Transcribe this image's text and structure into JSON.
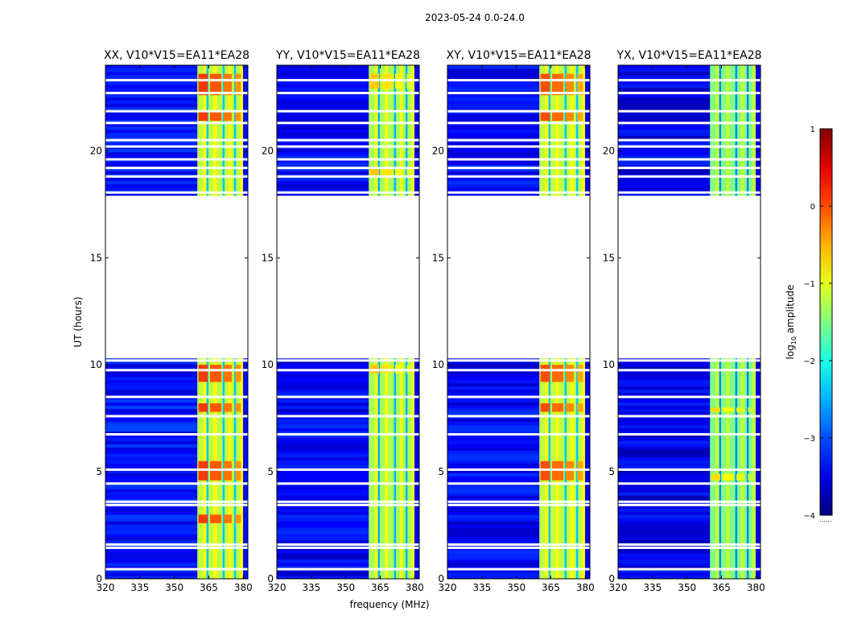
{
  "figure_title": "2023-05-24 0.0-24.0",
  "colorbar": {
    "label_prefix": "log",
    "label_sub": "10",
    "label_suffix": " amplitude",
    "ticks": [
      "1",
      "0",
      "−1",
      "−2",
      "−3",
      "−4"
    ],
    "tick_values": [
      1,
      0,
      -1,
      -2,
      -3,
      -4
    ],
    "range": [
      -4,
      1
    ],
    "colormap": "jet",
    "footnote": "......"
  },
  "chart_data": [
    {
      "type": "heatmap",
      "title": "XX, V10*V15=EA11*EA28",
      "xlabel": "",
      "ylabel": "UT (hours)",
      "xlim": [
        320,
        382
      ],
      "ylim": [
        0,
        24
      ],
      "xticks": [
        320,
        335,
        350,
        365,
        380
      ],
      "yticks": [
        0,
        5,
        10,
        15,
        20
      ],
      "xtick_labels": [
        "320",
        "335",
        "350",
        "365",
        "380"
      ],
      "ytick_labels": [
        "0",
        "5",
        "10",
        "15",
        "20"
      ],
      "background_level": -3.3,
      "band_range_mhz": [
        360,
        379.5
      ],
      "band_level": -1.2,
      "no_data_hours": [
        [
          10.3,
          17.9
        ]
      ],
      "bright_hours": [
        [
          4.6,
          5.5
        ],
        [
          2.6,
          3.0
        ],
        [
          7.8,
          8.2
        ],
        [
          9.2,
          10.0
        ],
        [
          21.4,
          21.8
        ],
        [
          22.6,
          23.6
        ]
      ],
      "bright_level": 0.1
    },
    {
      "type": "heatmap",
      "title": "YY, V10*V15=EA11*EA28",
      "xlabel": "frequency (MHz)",
      "ylabel": "",
      "xlim": [
        320,
        382
      ],
      "ylim": [
        0,
        24
      ],
      "xticks": [
        320,
        335,
        350,
        365,
        380
      ],
      "yticks": [
        0,
        5,
        10,
        15,
        20
      ],
      "xtick_labels": [
        "320",
        "335",
        "350",
        "365",
        "380"
      ],
      "ytick_labels": [
        "0",
        "5",
        "10",
        "15",
        "20"
      ],
      "background_level": -3.4,
      "band_range_mhz": [
        360,
        379.5
      ],
      "band_level": -1.3,
      "no_data_hours": [
        [
          10.3,
          17.9
        ]
      ],
      "bright_hours": [
        [
          9.6,
          10.0
        ],
        [
          22.9,
          23.6
        ],
        [
          18.8,
          19.2
        ]
      ],
      "bright_level": -0.6
    },
    {
      "type": "heatmap",
      "title": "XY, V10*V15=EA11*EA28",
      "xlabel": "",
      "ylabel": "",
      "xlim": [
        320,
        382
      ],
      "ylim": [
        0,
        24
      ],
      "xticks": [
        320,
        335,
        350,
        365,
        380
      ],
      "yticks": [
        0,
        5,
        10,
        15,
        20
      ],
      "xtick_labels": [
        "320",
        "335",
        "350",
        "365",
        "380"
      ],
      "ytick_labels": [
        "0",
        "5",
        "10",
        "15",
        "20"
      ],
      "background_level": -3.4,
      "band_range_mhz": [
        360,
        379.5
      ],
      "band_level": -1.2,
      "no_data_hours": [
        [
          10.3,
          17.9
        ]
      ],
      "bright_hours": [
        [
          4.6,
          5.5
        ],
        [
          7.8,
          8.2
        ],
        [
          9.2,
          10.0
        ],
        [
          22.6,
          23.6
        ],
        [
          21.4,
          21.8
        ]
      ],
      "bright_level": 0.0
    },
    {
      "type": "heatmap",
      "title": "YX, V10*V15=EA11*EA28",
      "xlabel": "",
      "ylabel": "",
      "xlim": [
        320,
        382
      ],
      "ylim": [
        0,
        24
      ],
      "xticks": [
        320,
        335,
        350,
        365,
        380
      ],
      "yticks": [
        0,
        5,
        10,
        15,
        20
      ],
      "xtick_labels": [
        "320",
        "335",
        "350",
        "365",
        "380"
      ],
      "ytick_labels": [
        "0",
        "5",
        "10",
        "15",
        "20"
      ],
      "background_level": -3.5,
      "band_range_mhz": [
        360,
        379.5
      ],
      "band_level": -1.5,
      "no_data_hours": [
        [
          10.3,
          17.9
        ]
      ],
      "bright_hours": [
        [
          4.6,
          4.9
        ],
        [
          7.8,
          8.0
        ]
      ],
      "bright_level": -0.7
    }
  ]
}
